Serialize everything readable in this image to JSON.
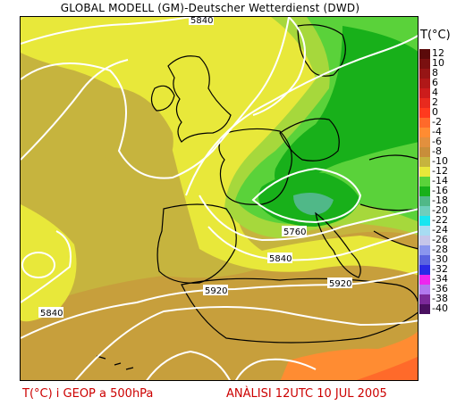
{
  "header": {
    "title": "GLOBAL MODELL (GM)-Deutscher Wetterdienst (DWD)"
  },
  "legend": {
    "title": "T(°C)",
    "items": [
      {
        "label": "12",
        "color": "#5a0a0a"
      },
      {
        "label": "10",
        "color": "#7a1010"
      },
      {
        "label": "8",
        "color": "#961515"
      },
      {
        "label": "6",
        "color": "#b01818"
      },
      {
        "label": "4",
        "color": "#cc1c1c"
      },
      {
        "label": "2",
        "color": "#e82a1e"
      },
      {
        "label": "0",
        "color": "#ff3a1e"
      },
      {
        "label": "-2",
        "color": "#ff6a2a"
      },
      {
        "label": "-4",
        "color": "#ff8c32"
      },
      {
        "label": "-6",
        "color": "#e2903e"
      },
      {
        "label": "-8",
        "color": "#c88e3a"
      },
      {
        "label": "-10",
        "color": "#c6b43e"
      },
      {
        "label": "-12",
        "color": "#e8e83a"
      },
      {
        "label": "-14",
        "color": "#5ad23a"
      },
      {
        "label": "-16",
        "color": "#18b01a"
      },
      {
        "label": "-18",
        "color": "#50b888"
      },
      {
        "label": "-20",
        "color": "#6ecebc"
      },
      {
        "label": "-22",
        "color": "#18e6f0"
      },
      {
        "label": "-24",
        "color": "#a8dcf2"
      },
      {
        "label": "-26",
        "color": "#c6c6ea"
      },
      {
        "label": "-28",
        "color": "#8a96ee"
      },
      {
        "label": "-30",
        "color": "#5a64e0"
      },
      {
        "label": "-32",
        "color": "#2a2ae6"
      },
      {
        "label": "-34",
        "color": "#ee26ee"
      },
      {
        "label": "-36",
        "color": "#b278ee"
      },
      {
        "label": "-38",
        "color": "#7c2a9a"
      },
      {
        "label": "-40",
        "color": "#4a1060"
      }
    ]
  },
  "contours": {
    "c5840_top": "5840",
    "c5760": "5760",
    "c5840_mid": "5840",
    "c5920_a": "5920",
    "c5920_b": "5920",
    "c5840_left": "5840"
  },
  "footer": {
    "left": "T(°C) i GEOP a 500hPa",
    "right": "ANÀLISI 12UTC 10 JUL 2005"
  }
}
